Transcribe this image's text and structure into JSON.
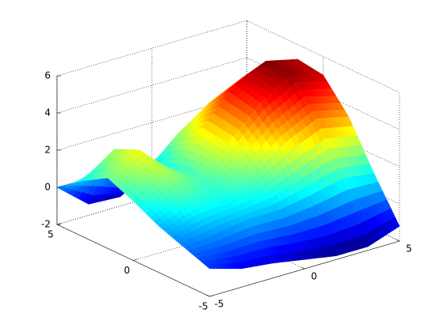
{
  "chart_data": {
    "type": "surface",
    "colormap": "jet",
    "grid": true,
    "x": [
      -5,
      -3.33,
      -1.67,
      0,
      1.67,
      3.33,
      5
    ],
    "y": [
      -5,
      -3.33,
      -1.67,
      0,
      1.67,
      3.33,
      5
    ],
    "z": [
      [
        -0.5,
        -1,
        -1.2,
        -1.5,
        -1.8,
        -1.8,
        -1.2
      ],
      [
        0,
        0.2,
        0.5,
        0.5,
        0.8,
        1.2,
        1.0
      ],
      [
        0.5,
        1.2,
        1.2,
        1.8,
        3.0,
        3.8,
        3.4
      ],
      [
        1.2,
        2.2,
        1.5,
        2.8,
        4.5,
        5.5,
        5.0
      ],
      [
        1.8,
        2.8,
        1.2,
        3.0,
        4.8,
        5.6,
        5.2
      ],
      [
        1.0,
        2.2,
        0.5,
        2.0,
        3.2,
        4.0,
        3.6
      ],
      [
        0,
        -1.4,
        -1.5,
        -0.5,
        0.5,
        1.0,
        0.5
      ]
    ],
    "xlim": [
      -5,
      5
    ],
    "ylim": [
      -5,
      5
    ],
    "zlim": [
      -2,
      6
    ],
    "xticks": [
      -5,
      0,
      5
    ],
    "yticks": [
      -5,
      0,
      5
    ],
    "zticks": [
      -2,
      0,
      2,
      4,
      6
    ]
  }
}
